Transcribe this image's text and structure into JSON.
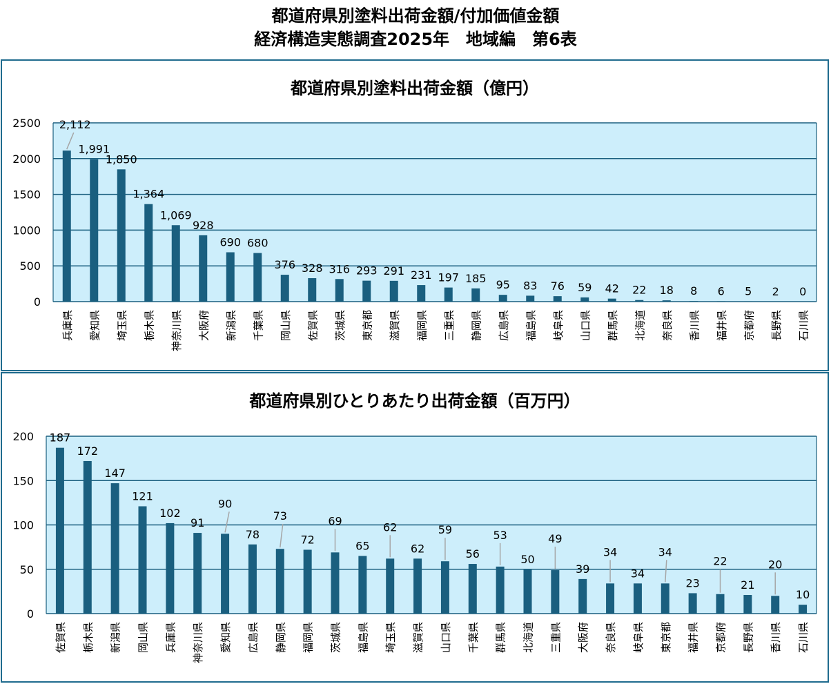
{
  "page": {
    "title_line1": "都道府県別塗料出荷金額/付加価値金額",
    "title_line2": "経済構造実態調査2025年　地域編　第6表"
  },
  "colors": {
    "bar": "#1a5f7f",
    "plot_bg": "#cdeefb",
    "grid": "#1a5f7f",
    "border": "#1f6b8e",
    "leader": "#a6a6a6"
  },
  "chart_data": [
    {
      "type": "bar",
      "title": "都道府県別塗料出荷金額（億円）",
      "categories": [
        "兵庫県",
        "愛知県",
        "埼玉県",
        "栃木県",
        "神奈川県",
        "大阪府",
        "新潟県",
        "千葉県",
        "岡山県",
        "佐賀県",
        "茨城県",
        "東京都",
        "滋賀県",
        "福岡県",
        "三重県",
        "静岡県",
        "広島県",
        "福島県",
        "岐阜県",
        "山口県",
        "群馬県",
        "北海道",
        "奈良県",
        "香川県",
        "福井県",
        "京都府",
        "長野県",
        "石川県"
      ],
      "values": [
        2112,
        1991,
        1850,
        1364,
        1069,
        928,
        690,
        680,
        376,
        328,
        316,
        293,
        291,
        231,
        197,
        185,
        95,
        83,
        76,
        59,
        42,
        22,
        18,
        8,
        6,
        5,
        2,
        0
      ],
      "data_labels": [
        "2,112",
        "1,991",
        "1,850",
        "1,364",
        "1,069",
        "928",
        "690",
        "680",
        "376",
        "328",
        "316",
        "293",
        "291",
        "231",
        "197",
        "185",
        "95",
        "83",
        "76",
        "59",
        "42",
        "22",
        "18",
        "8",
        "6",
        "5",
        "2",
        "0"
      ],
      "y_ticks": [
        "2500",
        "2000",
        "1500",
        "1000",
        "500",
        "0"
      ],
      "ylim": [
        0,
        2500
      ],
      "grid": true,
      "legend": "none"
    },
    {
      "type": "bar",
      "title": "都道府県別ひとりあたり出荷金額（百万円）",
      "categories": [
        "佐賀県",
        "栃木県",
        "新潟県",
        "岡山県",
        "兵庫県",
        "神奈川県",
        "愛知県",
        "広島県",
        "静岡県",
        "福岡県",
        "茨城県",
        "福島県",
        "埼玉県",
        "滋賀県",
        "山口県",
        "千葉県",
        "群馬県",
        "北海道",
        "三重県",
        "大阪府",
        "奈良県",
        "岐阜県",
        "東京都",
        "福井県",
        "京都府",
        "長野県",
        "香川県",
        "石川県"
      ],
      "values": [
        187,
        172,
        147,
        121,
        102,
        91,
        90,
        78,
        73,
        72,
        69,
        65,
        62,
        62,
        59,
        56,
        53,
        50,
        49,
        39,
        34,
        34,
        34,
        23,
        22,
        21,
        20,
        10
      ],
      "data_labels": [
        "187",
        "172",
        "147",
        "121",
        "102",
        "91",
        "90",
        "78",
        "73",
        "72",
        "69",
        "65",
        "62",
        "62",
        "59",
        "56",
        "53",
        "50",
        "49",
        "39",
        "34",
        "34",
        "34",
        "23",
        "22",
        "21",
        "20",
        "10"
      ],
      "y_ticks": [
        "200",
        "150",
        "100",
        "50",
        "0"
      ],
      "ylim": [
        0,
        200
      ],
      "grid": true,
      "legend": "none"
    }
  ]
}
